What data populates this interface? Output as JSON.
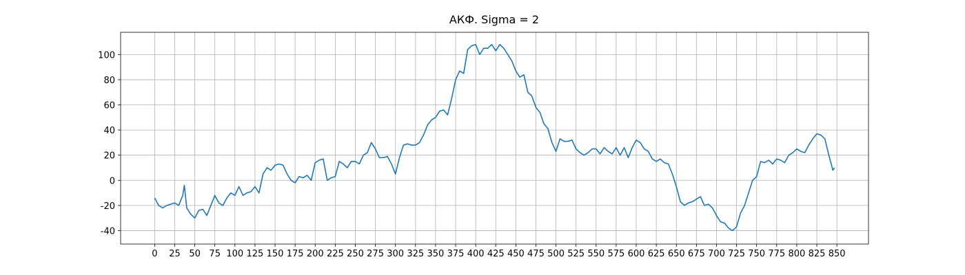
{
  "chart_data": {
    "type": "line",
    "title": "АКФ. Sigma = 2",
    "x": [
      0,
      5,
      10,
      15,
      20,
      25,
      30,
      35,
      37,
      40,
      45,
      50,
      55,
      60,
      65,
      70,
      75,
      80,
      85,
      90,
      95,
      100,
      105,
      110,
      115,
      120,
      125,
      130,
      135,
      140,
      145,
      150,
      155,
      160,
      165,
      170,
      175,
      180,
      185,
      190,
      195,
      200,
      205,
      210,
      215,
      220,
      225,
      230,
      235,
      240,
      245,
      250,
      255,
      260,
      265,
      270,
      275,
      280,
      285,
      290,
      295,
      300,
      305,
      310,
      315,
      320,
      325,
      330,
      335,
      340,
      345,
      350,
      355,
      360,
      365,
      370,
      375,
      380,
      385,
      390,
      395,
      400,
      405,
      410,
      415,
      420,
      425,
      430,
      435,
      440,
      445,
      450,
      455,
      460,
      465,
      470,
      475,
      480,
      485,
      490,
      495,
      500,
      505,
      510,
      515,
      520,
      525,
      530,
      535,
      540,
      545,
      550,
      555,
      560,
      565,
      570,
      575,
      580,
      585,
      590,
      595,
      600,
      605,
      610,
      615,
      620,
      625,
      630,
      635,
      640,
      645,
      650,
      655,
      660,
      665,
      670,
      675,
      680,
      685,
      690,
      695,
      700,
      705,
      710,
      715,
      720,
      725,
      730,
      735,
      740,
      745,
      750,
      755,
      760,
      765,
      770,
      775,
      780,
      785,
      790,
      795,
      800,
      805,
      810,
      815,
      820,
      825,
      830,
      835,
      840,
      845,
      847
    ],
    "series": [
      {
        "color": "#1f77b4",
        "values": [
          -14,
          -20,
          -22,
          -20,
          -19,
          -18,
          -20,
          -12,
          -4,
          -22,
          -27,
          -30,
          -24,
          -23,
          -28,
          -20,
          -12,
          -18,
          -20,
          -14,
          -10,
          -12,
          -5,
          -12,
          -10,
          -9,
          -5,
          -10,
          5,
          10,
          8,
          12,
          13,
          12,
          5,
          0,
          -2,
          3,
          2,
          4,
          0,
          14,
          16,
          17,
          0,
          2,
          3,
          15,
          13,
          10,
          15,
          15,
          13,
          20,
          22,
          30,
          25,
          18,
          18,
          19,
          13,
          5,
          18,
          28,
          29,
          28,
          28,
          30,
          36,
          44,
          48,
          50,
          55,
          56,
          52,
          65,
          80,
          87,
          85,
          104,
          107,
          108,
          100,
          105,
          105,
          108,
          103,
          108,
          105,
          100,
          95,
          87,
          82,
          84,
          70,
          67,
          58,
          54,
          45,
          41,
          30,
          23,
          33,
          31,
          31,
          32,
          25,
          22,
          20,
          22,
          25,
          25,
          21,
          26,
          23,
          21,
          26,
          20,
          26,
          18,
          26,
          32,
          30,
          25,
          23,
          17,
          15,
          17,
          14,
          13,
          5,
          -5,
          -17,
          -20,
          -18,
          -17,
          -15,
          -13,
          -20,
          -19,
          -22,
          -28,
          -33,
          -34,
          -38,
          -40,
          -37,
          -26,
          -20,
          -10,
          0,
          3,
          15,
          14,
          16,
          13,
          17,
          16,
          14,
          20,
          22,
          25,
          23,
          22,
          28,
          33,
          37,
          36,
          33,
          20,
          8,
          10
        ]
      }
    ],
    "xlim": [
      -42.4,
      889.4
    ],
    "ylim": [
      -50.7,
      117.7
    ],
    "xticks": [
      0,
      25,
      50,
      75,
      100,
      125,
      150,
      175,
      200,
      225,
      250,
      275,
      300,
      325,
      350,
      375,
      400,
      425,
      450,
      475,
      500,
      525,
      550,
      575,
      600,
      625,
      650,
      675,
      700,
      725,
      750,
      775,
      800,
      825,
      850
    ],
    "yticks": [
      -40,
      -20,
      0,
      20,
      40,
      60,
      80,
      100
    ],
    "grid": true
  }
}
